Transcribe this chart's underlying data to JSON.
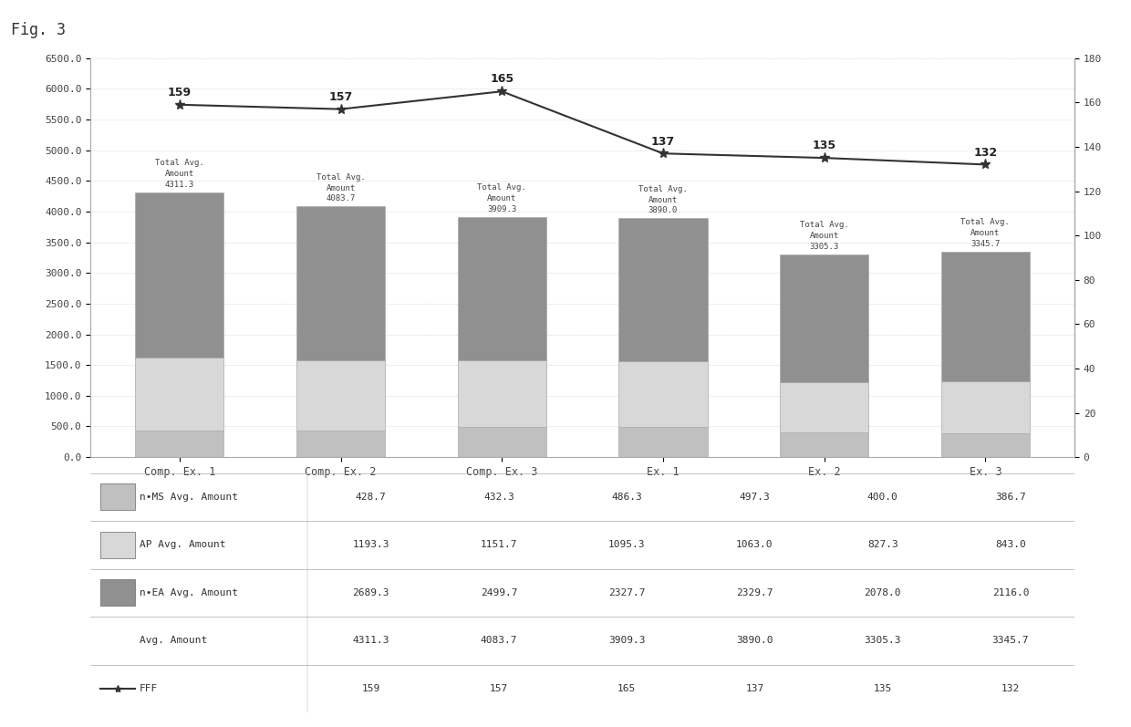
{
  "categories": [
    "Comp. Ex. 1",
    "Comp. Ex. 2",
    "Comp. Ex. 3",
    "Ex. 1",
    "Ex. 2",
    "Ex. 3"
  ],
  "nMS_values": [
    428.7,
    432.3,
    486.3,
    497.3,
    400.0,
    386.7
  ],
  "AP_values": [
    1193.3,
    1151.7,
    1095.3,
    1063.0,
    827.3,
    843.0
  ],
  "nEA_values": [
    2689.3,
    2499.7,
    2327.7,
    2329.7,
    2078.0,
    2116.0
  ],
  "total_avg": [
    4311.3,
    4083.7,
    3909.3,
    3890.0,
    3305.3,
    3345.7
  ],
  "fff_values": [
    159,
    157,
    165,
    137,
    135,
    132
  ],
  "bar_color_nMS": "#c0c0c0",
  "bar_color_AP": "#d8d8d8",
  "bar_color_nEA": "#909090",
  "line_color": "#333333",
  "title": "Fig. 3",
  "ylim_left": [
    0,
    6500
  ],
  "ylim_right": [
    0,
    180
  ],
  "yticks_left": [
    0.0,
    500.0,
    1000.0,
    1500.0,
    2000.0,
    2500.0,
    3000.0,
    3500.0,
    4000.0,
    4500.0,
    5000.0,
    5500.0,
    6000.0,
    6500.0
  ],
  "yticks_right": [
    0,
    20,
    40,
    60,
    80,
    100,
    120,
    140,
    160,
    180
  ],
  "table_nMS_label": "n•MS Avg. Amount",
  "table_AP_label": "AP Avg. Amount",
  "table_nEA_label": "n•EA Avg. Amount",
  "table_avg_label": "Avg. Amount",
  "table_fff_label": "FFF",
  "background_color": "#ffffff",
  "font_color": "#444444"
}
